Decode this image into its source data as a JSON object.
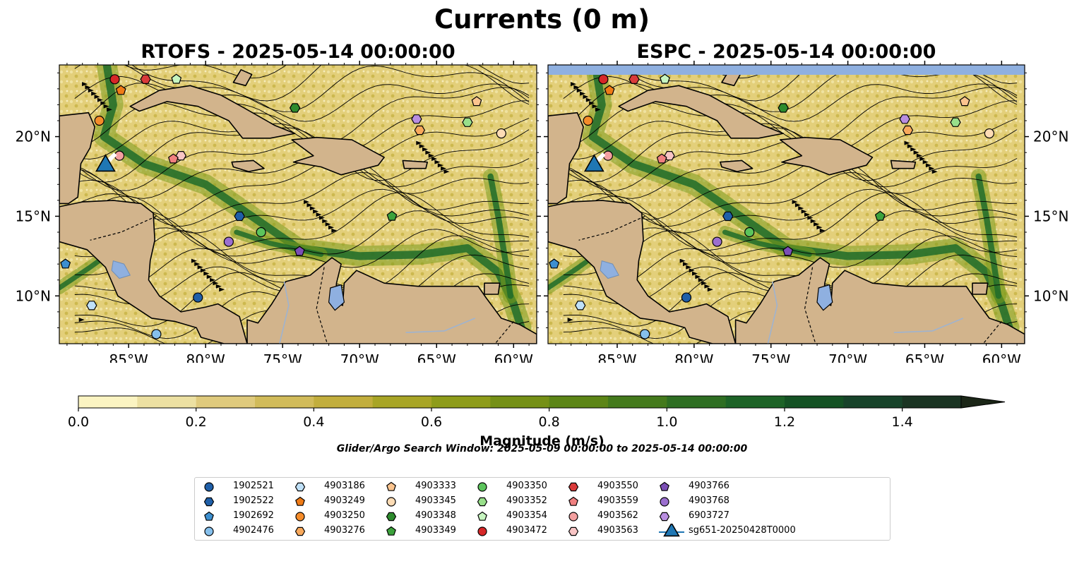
{
  "title": "Currents (0 m)",
  "panels": [
    {
      "id": "rtofs",
      "title": "RTOFS - 2025-05-14 00:00:00"
    },
    {
      "id": "espc",
      "title": "ESPC - 2025-05-14 00:00:00"
    }
  ],
  "map": {
    "lon_range": [
      -89.5,
      -58.5
    ],
    "lat_range": [
      7,
      24.5
    ],
    "lon_ticks": [
      "85°W",
      "80°W",
      "75°W",
      "70°W",
      "65°W",
      "60°W"
    ],
    "lat_ticks": [
      "20°N",
      "15°N",
      "10°N"
    ],
    "ocean_color": "#e3cf7a",
    "land_color": "#d2b48c",
    "lake_color": "#8fb0e0",
    "strong_current_color": "#1e6b2a"
  },
  "colorbar": {
    "label": "Magnitude (m/s)",
    "min": 0.0,
    "max": 1.5,
    "extend": "max",
    "tick_labels": [
      "0.0",
      "0.2",
      "0.4",
      "0.6",
      "0.8",
      "1.0",
      "1.2",
      "1.4"
    ],
    "colors": [
      "#fbf4c2",
      "#ece0a2",
      "#dfca7d",
      "#d1bb5a",
      "#c2ae3d",
      "#a8a526",
      "#8e9c1a",
      "#759016",
      "#5c8516",
      "#447a1c",
      "#2e6e22",
      "#1d6327",
      "#145224",
      "#17432a",
      "#1a3422",
      "#1b2617"
    ]
  },
  "search_window": "Glider/Argo Search Window: 2025-05-09 00:00:00 to 2025-05-14 00:00:00",
  "legend": [
    {
      "label": "1902521",
      "marker": "circle",
      "color": "#1f5fa8"
    },
    {
      "label": "1902522",
      "marker": "hexagon",
      "color": "#1f5fa8"
    },
    {
      "label": "1902692",
      "marker": "pentagon",
      "color": "#3d8fcf"
    },
    {
      "label": "4902476",
      "marker": "circle",
      "color": "#86c0ec"
    },
    {
      "label": "4903186",
      "marker": "hexagon",
      "color": "#bfe0f8"
    },
    {
      "label": "4903249",
      "marker": "pentagon",
      "color": "#ef7b16"
    },
    {
      "label": "4903250",
      "marker": "circle",
      "color": "#f58c2a"
    },
    {
      "label": "4903276",
      "marker": "hexagon",
      "color": "#f8a95c"
    },
    {
      "label": "4903333",
      "marker": "pentagon",
      "color": "#fbc48e"
    },
    {
      "label": "4903345",
      "marker": "circle",
      "color": "#fddcb5"
    },
    {
      "label": "4903348",
      "marker": "hexagon",
      "color": "#2e8b2e"
    },
    {
      "label": "4903349",
      "marker": "pentagon",
      "color": "#3ca23c"
    },
    {
      "label": "4903350",
      "marker": "circle",
      "color": "#5cc45c"
    },
    {
      "label": "4903352",
      "marker": "hexagon",
      "color": "#98df8a"
    },
    {
      "label": "4903354",
      "marker": "pentagon",
      "color": "#c7f5c0"
    },
    {
      "label": "4903472",
      "marker": "circle",
      "color": "#d62728"
    },
    {
      "label": "4903550",
      "marker": "hexagon",
      "color": "#d93a3a"
    },
    {
      "label": "4903559",
      "marker": "pentagon",
      "color": "#f08080"
    },
    {
      "label": "4903562",
      "marker": "circle",
      "color": "#f4a0a0"
    },
    {
      "label": "4903563",
      "marker": "hexagon",
      "color": "#f8c5c5"
    },
    {
      "label": "4903766",
      "marker": "pentagon",
      "color": "#7b4fb5"
    },
    {
      "label": "4903768",
      "marker": "circle",
      "color": "#9b6fcf"
    },
    {
      "label": "6903727",
      "marker": "hexagon",
      "color": "#b98ee0"
    },
    {
      "label": "sg651-20250428T0000",
      "marker": "triangle",
      "color": "#1f77b4"
    }
  ],
  "floats": [
    {
      "id": "4903472",
      "lon": -85.9,
      "lat": 23.6
    },
    {
      "id": "4903550",
      "lon": -83.9,
      "lat": 23.6
    },
    {
      "id": "4903354",
      "lon": -81.9,
      "lat": 23.6
    },
    {
      "id": "4903249",
      "lon": -85.5,
      "lat": 22.9
    },
    {
      "id": "4903348",
      "lon": -74.2,
      "lat": 21.8
    },
    {
      "id": "4903333",
      "lon": -62.4,
      "lat": 22.2
    },
    {
      "id": "4903250",
      "lon": -86.9,
      "lat": 21.0
    },
    {
      "id": "6903727",
      "lon": -66.3,
      "lat": 21.1
    },
    {
      "id": "4903352",
      "lon": -63.0,
      "lat": 20.9
    },
    {
      "id": "4903276",
      "lon": -66.1,
      "lat": 20.4
    },
    {
      "id": "4903345",
      "lon": -60.8,
      "lat": 20.2
    },
    {
      "id": "4903563",
      "lon": -81.6,
      "lat": 18.8
    },
    {
      "id": "4903559",
      "lon": -82.1,
      "lat": 18.6
    },
    {
      "id": "4903562",
      "lon": -85.6,
      "lat": 18.8
    },
    {
      "id": "1902522",
      "lon": -77.8,
      "lat": 15.0
    },
    {
      "id": "4903349",
      "lon": -67.9,
      "lat": 15.0
    },
    {
      "id": "4903350",
      "lon": -76.4,
      "lat": 14.0
    },
    {
      "id": "4903768",
      "lon": -78.5,
      "lat": 13.4
    },
    {
      "id": "4903766",
      "lon": -73.9,
      "lat": 12.8
    },
    {
      "id": "1902692",
      "lon": -89.1,
      "lat": 12.0
    },
    {
      "id": "1902521",
      "lon": -80.5,
      "lat": 9.9
    },
    {
      "id": "4903186",
      "lon": -87.4,
      "lat": 9.4
    },
    {
      "id": "4902476",
      "lon": -83.2,
      "lat": 7.6
    }
  ],
  "glider": {
    "id": "sg651-20250428T0000",
    "lon": -86.5,
    "lat": 18.3
  }
}
